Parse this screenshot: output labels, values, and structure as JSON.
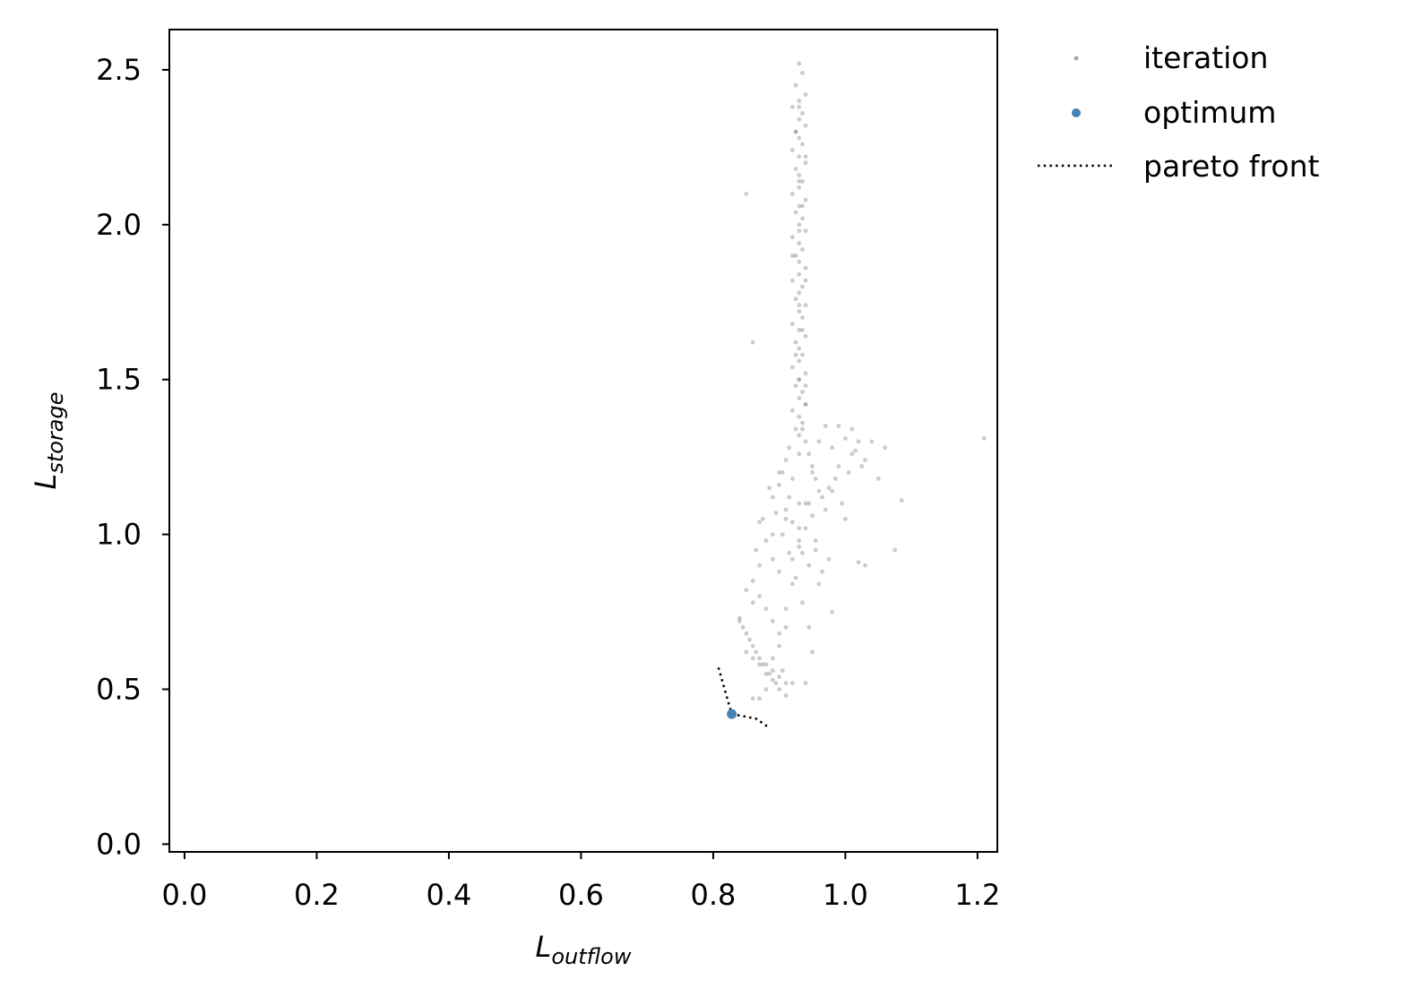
{
  "chart_data": {
    "type": "scatter",
    "title": "",
    "xlabel": {
      "main": "L",
      "sub": "outflow"
    },
    "ylabel": {
      "main": "L",
      "sub": "storage"
    },
    "xlim": [
      -0.023,
      1.23
    ],
    "ylim": [
      -0.025,
      2.63
    ],
    "xticks": [
      0.0,
      0.2,
      0.4,
      0.6,
      0.8,
      1.0,
      1.2
    ],
    "xtick_labels": [
      "0.0",
      "0.2",
      "0.4",
      "0.6",
      "0.8",
      "1.0",
      "1.2"
    ],
    "yticks": [
      0.0,
      0.5,
      1.0,
      1.5,
      2.0,
      2.5
    ],
    "ytick_labels": [
      "0.0",
      "0.5",
      "1.0",
      "1.5",
      "2.0",
      "2.5"
    ],
    "grid": false,
    "legend": {
      "placement": "outside-top-right",
      "entries": [
        {
          "label": "iteration",
          "marker": "point"
        },
        {
          "label": "optimum",
          "marker": "dot"
        },
        {
          "label": "pareto front",
          "marker": "dotted-line"
        }
      ]
    },
    "colors": {
      "iteration": "#8c8c8c",
      "optimum": "#4682b4",
      "pareto_front": "#000000"
    },
    "series": [
      {
        "name": "iteration",
        "description": "dense vertical band of sampled points",
        "x": [
          0.93,
          0.935,
          0.925,
          0.94,
          0.93,
          0.92,
          0.935,
          0.93,
          0.94,
          0.925,
          0.93,
          0.935,
          0.92,
          0.93,
          0.94,
          0.925,
          0.93,
          0.935,
          0.93,
          0.92,
          0.94,
          0.93,
          0.925,
          0.935,
          0.93,
          0.94,
          0.92,
          0.93,
          0.935,
          0.925,
          0.93,
          0.94,
          0.93,
          0.92,
          0.935,
          0.93,
          0.925,
          0.94,
          0.93,
          0.935,
          0.92,
          0.93,
          0.94,
          0.925,
          0.93,
          0.935,
          0.93,
          0.92,
          0.94,
          0.93,
          0.925,
          0.935,
          0.93,
          0.94,
          0.92,
          0.93,
          0.935,
          0.925,
          0.93,
          0.94,
          0.915,
          0.945,
          0.91,
          0.95,
          0.905,
          0.955,
          0.9,
          0.96,
          0.915,
          0.945,
          0.91,
          0.95,
          0.92,
          0.94,
          0.905,
          0.955,
          0.93,
          0.935,
          0.92,
          0.945,
          0.96,
          0.97,
          0.98,
          0.99,
          1.0,
          1.01,
          1.02,
          1.03,
          0.965,
          0.975,
          0.985,
          0.995,
          1.005,
          1.015,
          1.025,
          0.97,
          0.98,
          0.99,
          1.0,
          1.01,
          1.04,
          1.05,
          1.06,
          1.085,
          1.21,
          0.955,
          0.965,
          0.975,
          1.075,
          0.85,
          0.86,
          0.87,
          0.88,
          0.89,
          0.9,
          0.86,
          0.87,
          0.88,
          0.89,
          0.9,
          0.84,
          0.85,
          0.86,
          0.87,
          0.88,
          0.89,
          0.9,
          0.91,
          0.85,
          0.86,
          0.87,
          0.88,
          0.89,
          0.9,
          0.91,
          0.92,
          0.84,
          0.845,
          0.855,
          0.865,
          0.875,
          0.885,
          0.895,
          0.905,
          0.86,
          0.87,
          0.88,
          0.89,
          0.9,
          0.91,
          0.85,
          0.87,
          0.89,
          0.91,
          0.93,
          0.95,
          0.94,
          0.96,
          0.98,
          1.02,
          1.03,
          0.86,
          0.875,
          0.89,
          0.9,
          0.91,
          0.92,
          0.865,
          0.885,
          0.895,
          0.93,
          0.94,
          0.95,
          0.945,
          0.935,
          0.925,
          0.915,
          0.93,
          0.94,
          0.92,
          0.93,
          0.935,
          0.94,
          0.93,
          0.925,
          0.935,
          0.93,
          0.94,
          0.92,
          0.93,
          0.935,
          0.93,
          0.94,
          0.925,
          0.93
        ],
        "y": [
          2.52,
          2.49,
          2.45,
          2.42,
          2.4,
          2.38,
          2.36,
          2.34,
          2.32,
          2.3,
          2.28,
          2.26,
          2.24,
          2.22,
          2.2,
          2.18,
          2.16,
          2.14,
          2.12,
          2.1,
          2.08,
          2.06,
          2.04,
          2.02,
          2.0,
          1.98,
          1.96,
          1.94,
          1.92,
          1.9,
          1.88,
          1.86,
          1.84,
          1.82,
          1.8,
          1.78,
          1.76,
          1.74,
          1.72,
          1.7,
          1.68,
          1.66,
          1.64,
          1.62,
          1.6,
          1.58,
          1.56,
          1.54,
          1.52,
          1.5,
          1.48,
          1.46,
          1.44,
          1.42,
          1.4,
          1.38,
          1.36,
          1.34,
          1.32,
          1.3,
          1.28,
          1.26,
          1.24,
          1.22,
          1.2,
          1.18,
          1.16,
          1.14,
          1.12,
          1.1,
          1.08,
          1.06,
          1.04,
          1.02,
          1.0,
          0.98,
          0.96,
          0.94,
          0.92,
          0.9,
          1.3,
          1.35,
          1.28,
          1.22,
          1.31,
          1.26,
          1.3,
          1.24,
          1.12,
          1.15,
          1.18,
          1.1,
          1.2,
          1.27,
          1.22,
          1.08,
          1.14,
          1.35,
          1.05,
          1.34,
          1.3,
          1.18,
          1.28,
          1.11,
          1.31,
          0.95,
          0.88,
          0.92,
          0.95,
          2.1,
          1.62,
          1.04,
          0.98,
          0.92,
          0.88,
          0.85,
          0.8,
          0.76,
          0.72,
          0.68,
          0.72,
          0.68,
          0.64,
          0.6,
          0.58,
          0.56,
          0.54,
          0.52,
          0.62,
          0.6,
          0.58,
          0.55,
          0.53,
          0.5,
          0.48,
          0.52,
          0.73,
          0.7,
          0.66,
          0.62,
          0.58,
          0.55,
          0.52,
          0.56,
          0.47,
          0.47,
          0.5,
          0.6,
          0.64,
          0.7,
          0.82,
          0.9,
          1.0,
          1.05,
          1.1,
          1.2,
          1.48,
          0.84,
          0.75,
          0.91,
          0.9,
          0.78,
          1.05,
          1.12,
          1.2,
          0.76,
          0.84,
          0.95,
          1.15,
          1.07,
          0.98,
          0.52,
          0.62,
          0.7,
          0.78,
          0.86,
          0.94,
          1.02,
          1.1,
          1.18,
          1.26,
          1.34,
          1.42,
          1.5,
          1.58,
          1.66,
          1.74,
          1.82,
          1.9,
          1.98,
          2.06,
          2.14,
          2.22,
          2.3,
          2.38
        ]
      },
      {
        "name": "optimum",
        "x": [
          0.828
        ],
        "y": [
          0.42
        ]
      },
      {
        "name": "pareto front",
        "x": [
          0.808,
          0.828,
          0.865,
          0.882
        ],
        "y": [
          0.57,
          0.42,
          0.405,
          0.38
        ]
      }
    ]
  }
}
